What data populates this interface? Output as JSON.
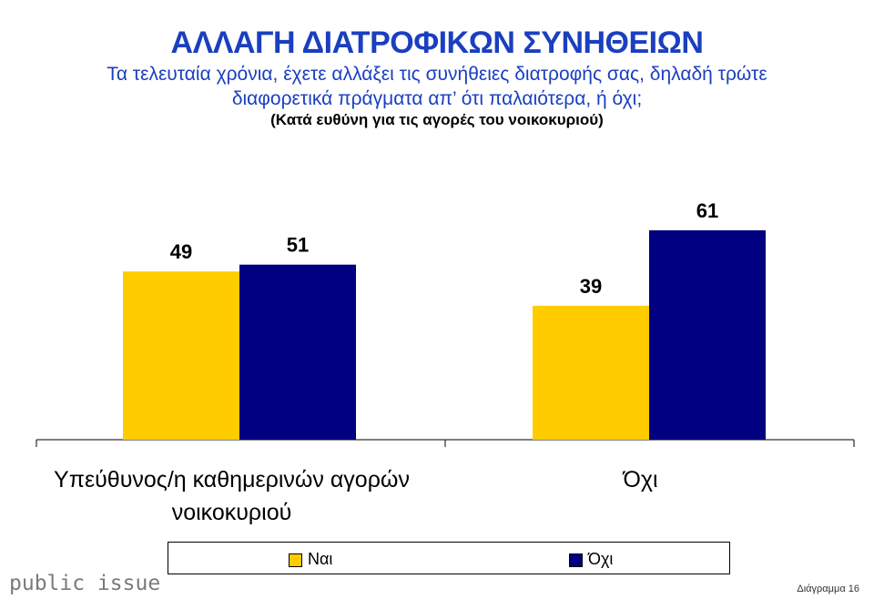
{
  "header": {
    "title": "ΑΛΛΑΓΗ ΔΙΑΤΡΟΦΙΚΩΝ ΣΥΝΗΘΕΙΩΝ",
    "question_line1": "Τα τελευταία χρόνια, έχετε αλλάξει τις συνήθειες διατροφής σας, δηλαδή τρώτε",
    "question_line2": "διαφορετικά πράγματα απ’ ότι παλαιότερα, ή όχι;",
    "subtitle": "(Κατά ευθύνη για τις αγορές του νοικοκυριού)"
  },
  "colors": {
    "title": "#1a3fbf",
    "series_nai": "#ffcc00",
    "series_oxi": "#000080"
  },
  "chart_data": {
    "type": "bar",
    "categories": [
      [
        "Υπεύθυνος/η καθημερινών αγορών",
        "νοικοκυριού"
      ],
      [
        "Όχι"
      ]
    ],
    "series": [
      {
        "name": "Ναι",
        "values": [
          49,
          39
        ],
        "color": "#ffcc00"
      },
      {
        "name": "Όχι",
        "values": [
          51,
          61
        ],
        "color": "#000080"
      }
    ],
    "ylim": [
      0,
      80
    ],
    "grid": false,
    "legend_position": "bottom"
  },
  "footer": {
    "brand": "public issue",
    "page_label": "Διάγραμμα 16"
  }
}
